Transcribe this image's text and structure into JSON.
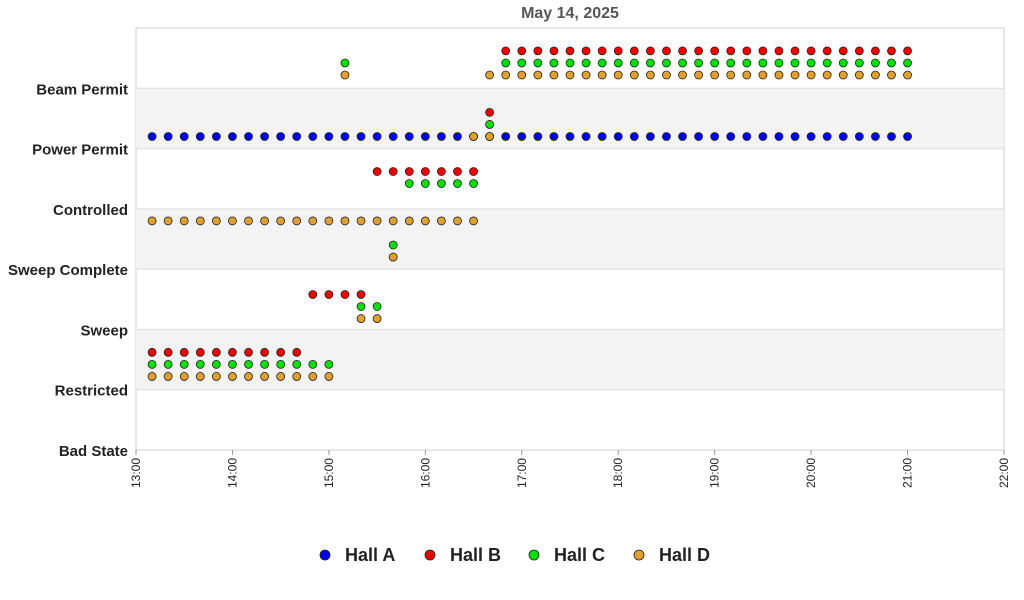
{
  "chart_data": {
    "type": "scatter",
    "title": "May 14, 2025",
    "xlabel": "",
    "ylabel": "",
    "x_ticks": [
      "13:00",
      "14:00",
      "15:00",
      "16:00",
      "17:00",
      "18:00",
      "19:00",
      "20:00",
      "21:00",
      "22:00"
    ],
    "xlim": [
      "13:00",
      "22:00"
    ],
    "y_categories": [
      "Bad State",
      "Restricted",
      "Sweep",
      "Sweep Complete",
      "Controlled",
      "Power Permit",
      "Beam Permit"
    ],
    "grid": "alternating horizontal bands",
    "legend_position": "bottom-center",
    "sample_interval_minutes": 10,
    "series": [
      {
        "name": "Hall A",
        "color": "#0000ee",
        "segments": [
          {
            "state": "Power Permit",
            "start": "13:10",
            "end": "21:00"
          }
        ]
      },
      {
        "name": "Hall B",
        "color": "#ee0000",
        "segments": [
          {
            "state": "Restricted",
            "start": "13:10",
            "end": "14:40"
          },
          {
            "state": "Sweep",
            "start": "14:50",
            "end": "15:20"
          },
          {
            "state": "Controlled",
            "start": "15:30",
            "end": "16:30"
          },
          {
            "state": "Power Permit",
            "start": "16:40",
            "end": "16:40"
          },
          {
            "state": "Beam Permit",
            "start": "16:50",
            "end": "21:00"
          }
        ]
      },
      {
        "name": "Hall C",
        "color": "#00e000",
        "segments": [
          {
            "state": "Restricted",
            "start": "13:10",
            "end": "15:00"
          },
          {
            "state": "Beam Permit",
            "start": "15:10",
            "end": "15:10"
          },
          {
            "state": "Sweep",
            "start": "15:20",
            "end": "15:30"
          },
          {
            "state": "Sweep Complete",
            "start": "15:40",
            "end": "15:40"
          },
          {
            "state": "Controlled",
            "start": "15:50",
            "end": "16:30"
          },
          {
            "state": "Power Permit",
            "start": "16:40",
            "end": "16:40"
          },
          {
            "state": "Beam Permit",
            "start": "16:50",
            "end": "21:00"
          }
        ]
      },
      {
        "name": "Hall D",
        "color": "#e0a030",
        "segments": [
          {
            "state": "Restricted",
            "start": "13:10",
            "end": "15:00"
          },
          {
            "state": "Beam Permit",
            "start": "15:10",
            "end": "15:10"
          },
          {
            "state": "Sweep",
            "start": "15:20",
            "end": "15:30"
          },
          {
            "state": "Sweep Complete",
            "start": "15:40",
            "end": "15:40"
          },
          {
            "state": "Controlled",
            "start": "13:10",
            "end": "13:10"
          },
          {
            "state": "Controlled",
            "start": "13:20",
            "end": "15:00"
          },
          {
            "state": "Controlled",
            "start": "15:10",
            "end": "16:30"
          },
          {
            "state": "Power Permit",
            "start": "16:30",
            "end": "16:40"
          },
          {
            "state": "Beam Permit",
            "start": "16:40",
            "end": "21:00"
          }
        ]
      }
    ]
  }
}
